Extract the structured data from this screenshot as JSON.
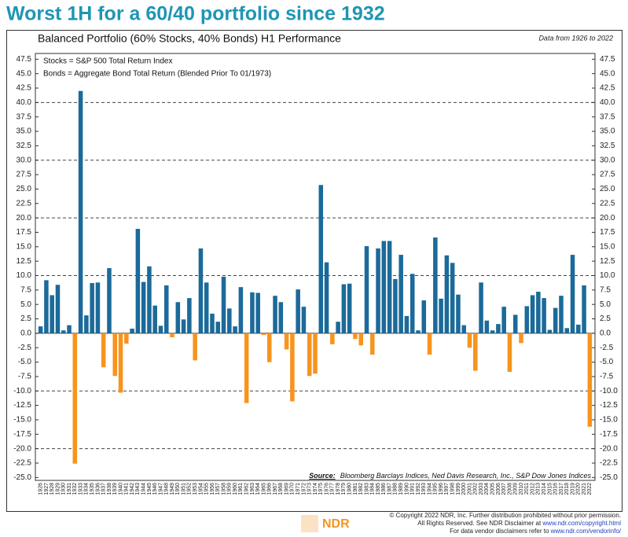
{
  "chart_data": {
    "type": "bar",
    "title": "Worst 1H for a 60/40 portfolio since 1932",
    "subtitle": "Balanced Portfolio (60% Stocks, 40% Bonds) H1 Performance",
    "note": "Data from 1926 to 2022",
    "legend_notes": [
      "Stocks = S&P 500 Total Return Index",
      "Bonds = Aggregate Bond Total Return (Blended Prior To 01/1973)"
    ],
    "source_label": "Source:",
    "source": "Bloomberg Barclays Indices, Ned Davis Research, Inc., S&P Dow Jones Indices",
    "categories": [
      "1926",
      "1927",
      "1928",
      "1929",
      "1930",
      "1931",
      "1932",
      "1933",
      "1934",
      "1935",
      "1936",
      "1937",
      "1938",
      "1939",
      "1940",
      "1941",
      "1942",
      "1943",
      "1944",
      "1945",
      "1946",
      "1947",
      "1948",
      "1949",
      "1950",
      "1951",
      "1952",
      "1953",
      "1954",
      "1955",
      "1956",
      "1957",
      "1958",
      "1959",
      "1960",
      "1961",
      "1962",
      "1963",
      "1964",
      "1965",
      "1966",
      "1967",
      "1968",
      "1969",
      "1970",
      "1971",
      "1972",
      "1973",
      "1974",
      "1975",
      "1976",
      "1977",
      "1978",
      "1979",
      "1980",
      "1981",
      "1982",
      "1983",
      "1984",
      "1985",
      "1986",
      "1987",
      "1988",
      "1989",
      "1990",
      "1991",
      "1992",
      "1993",
      "1994",
      "1995",
      "1996",
      "1997",
      "1998",
      "1999",
      "2000",
      "2001",
      "2002",
      "2003",
      "2004",
      "2005",
      "2006",
      "2007",
      "2008",
      "2009",
      "2010",
      "2011",
      "2012",
      "2013",
      "2014",
      "2015",
      "2016",
      "2017",
      "2018",
      "2019",
      "2020",
      "2021",
      "2022"
    ],
    "values": [
      1.2,
      9.2,
      6.6,
      8.4,
      0.5,
      1.4,
      -22.6,
      42.0,
      3.1,
      8.7,
      8.8,
      -5.9,
      11.3,
      -7.4,
      -10.3,
      -1.8,
      0.8,
      18.1,
      8.9,
      11.6,
      4.8,
      1.3,
      8.3,
      -0.7,
      5.4,
      2.4,
      6.1,
      -4.7,
      14.7,
      8.8,
      3.4,
      2.0,
      9.8,
      4.3,
      1.2,
      8.0,
      -12.1,
      7.1,
      7.0,
      -0.3,
      -5.0,
      6.5,
      5.4,
      -2.8,
      -11.8,
      7.6,
      4.6,
      -7.4,
      -7.0,
      25.7,
      12.3,
      -1.9,
      2.0,
      8.5,
      8.6,
      -1.0,
      -2.1,
      15.1,
      -3.7,
      14.7,
      16.0,
      16.0,
      9.4,
      13.6,
      3.0,
      10.3,
      0.5,
      5.7,
      -3.7,
      16.6,
      6.0,
      13.5,
      12.2,
      6.7,
      1.4,
      -2.5,
      -6.5,
      8.8,
      2.2,
      0.5,
      1.6,
      4.6,
      -6.7,
      3.2,
      -1.7,
      4.7,
      6.6,
      7.2,
      6.1,
      0.6,
      4.4,
      6.5,
      0.9,
      13.6,
      1.5,
      8.3,
      -16.2
    ],
    "positive_color": "#1b6a9a",
    "negative_color": "#f7941d",
    "ylim": [
      -25.5,
      48.5
    ],
    "yticks": [
      {
        "value": 47.5,
        "label": "47.5"
      },
      {
        "value": 45,
        "label": "45.0"
      },
      {
        "value": 42.5,
        "label": "42.5"
      },
      {
        "value": 40,
        "label": "40.0"
      },
      {
        "value": 37.5,
        "label": "37.5"
      },
      {
        "value": 35,
        "label": "35.0"
      },
      {
        "value": 32.5,
        "label": "32.5"
      },
      {
        "value": 30,
        "label": "30.0"
      },
      {
        "value": 27.5,
        "label": "27.5"
      },
      {
        "value": 25,
        "label": "25.0"
      },
      {
        "value": 22.5,
        "label": "22.5"
      },
      {
        "value": 20,
        "label": "20.0"
      },
      {
        "value": 17.5,
        "label": "17.5"
      },
      {
        "value": 15,
        "label": "15.0"
      },
      {
        "value": 12.5,
        "label": "12.5"
      },
      {
        "value": 10,
        "label": "10.0"
      },
      {
        "value": 7.5,
        "label": "7.5"
      },
      {
        "value": 5,
        "label": "5.0"
      },
      {
        "value": 2.5,
        "label": "2.5"
      },
      {
        "value": 0,
        "label": "0.0"
      },
      {
        "value": -2.5,
        "label": "-2.5"
      },
      {
        "value": -5,
        "label": "-5.0"
      },
      {
        "value": -7.5,
        "label": "-7.5"
      },
      {
        "value": -10,
        "label": "-10.0"
      },
      {
        "value": -12.5,
        "label": "-12.5"
      },
      {
        "value": -15,
        "label": "-15.0"
      },
      {
        "value": -17.5,
        "label": "-17.5"
      },
      {
        "value": -20,
        "label": "-20.0"
      },
      {
        "value": -22.5,
        "label": "-22.5"
      },
      {
        "value": -25,
        "label": "-25.0"
      }
    ],
    "grid_lines": [
      40,
      30,
      20,
      10,
      -10,
      -20
    ],
    "footer": {
      "copyright": "© Copyright 2022 NDR, Inc. Further distribution prohibited without prior permission.",
      "rights": "All Rights Reserved. See NDR Disclaimer at ",
      "rights_link": "www.ndr.com/copyright.html",
      "vendor": "For data vendor disclaimers refer to ",
      "vendor_link": "www.ndr.com/vendorinfo/",
      "logo": "NDR"
    }
  }
}
